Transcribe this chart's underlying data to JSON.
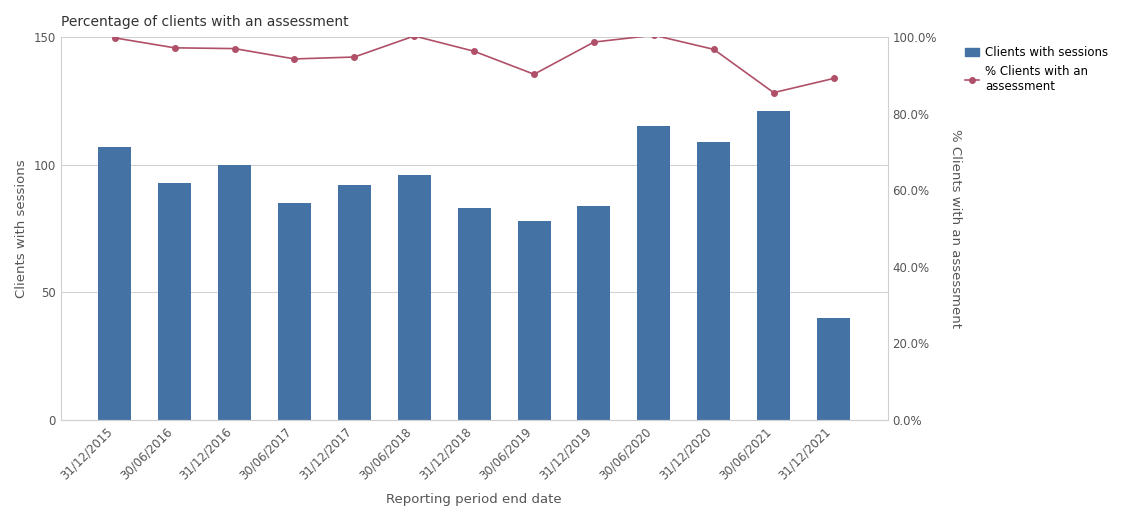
{
  "title": "Percentage of clients with an assessment",
  "xlabel": "Reporting period end date",
  "ylabel_left": "Clients with sessions",
  "ylabel_right": "% Clients with an assessment",
  "categories": [
    "31/12/2015",
    "30/06/2016",
    "31/12/2016",
    "30/06/2017",
    "31/12/2017",
    "30/06/2018",
    "31/12/2018",
    "30/06/2019",
    "31/12/2019",
    "30/06/2020",
    "31/12/2020",
    "30/06/2021",
    "31/12/2021"
  ],
  "bar_values": [
    107,
    93,
    100,
    85,
    92,
    96,
    83,
    78,
    84,
    115,
    109,
    121,
    40
  ],
  "line_values_pct": [
    0.998,
    0.972,
    0.97,
    0.943,
    0.948,
    1.003,
    0.963,
    0.903,
    0.987,
    1.005,
    0.968,
    0.855,
    0.892
  ],
  "bar_color": "#4472a4",
  "line_color": "#b05068",
  "left_ylim": [
    0,
    150
  ],
  "left_yticks": [
    0,
    50,
    100,
    150
  ],
  "right_ylim": [
    0.0,
    1.0
  ],
  "right_yticks": [
    0.0,
    0.2,
    0.4,
    0.6,
    0.8,
    1.0
  ],
  "legend_labels": [
    "Clients with sessions",
    "% Clients with an\nassessment"
  ],
  "title_fontsize": 10,
  "label_fontsize": 9.5,
  "tick_fontsize": 8.5,
  "background_color": "#ffffff",
  "grid_color": "#d0d0d0"
}
